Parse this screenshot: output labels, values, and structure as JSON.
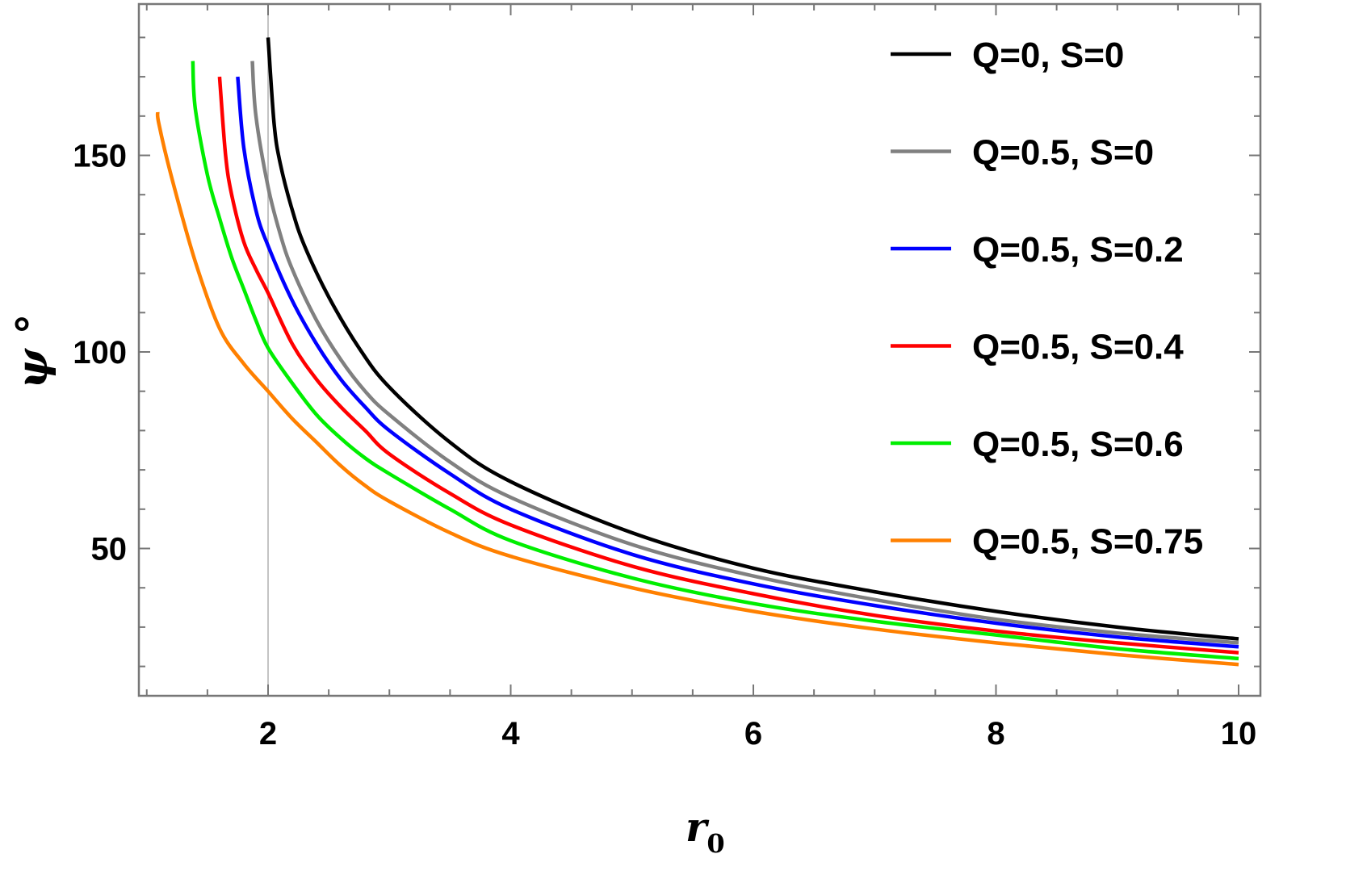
{
  "chart_data": {
    "type": "line",
    "title": "",
    "xlabel": "r",
    "xlabel_subscript": "0",
    "ylabel": "ψ °",
    "xlim": [
      0.9,
      10.2
    ],
    "ylim": [
      18,
      182
    ],
    "x_ticks": [
      2,
      4,
      6,
      8,
      10
    ],
    "x_tick_labels": [
      "2",
      "4",
      "6",
      "8",
      "10"
    ],
    "y_ticks": [
      50,
      100,
      150
    ],
    "y_tick_labels": [
      "50",
      "100",
      "150"
    ],
    "x_minor_step": 0.5,
    "y_minor_step": 10,
    "vertical_reference_line": 2,
    "grid": false,
    "legend_position": "right",
    "series": [
      {
        "name": "Q=0, S=0",
        "color": "#000000",
        "x": [
          2.0,
          2.05,
          2.1,
          2.2,
          2.3,
          2.5,
          2.75,
          3.0,
          3.5,
          4.0,
          5.0,
          6.0,
          7.0,
          8.0,
          9.0,
          10.0
        ],
        "y": [
          180,
          158,
          148,
          136,
          127,
          114,
          101,
          91,
          77,
          67,
          54,
          45,
          39,
          34,
          30,
          27
        ]
      },
      {
        "name": "Q=0.5, S=0",
        "color": "#808080",
        "x": [
          1.87,
          1.9,
          2.0,
          2.1,
          2.2,
          2.4,
          2.6,
          2.8,
          3.0,
          3.5,
          4.0,
          5.0,
          6.0,
          7.0,
          8.0,
          9.0,
          10.0
        ],
        "y": [
          174,
          160,
          142,
          130,
          121,
          108,
          98,
          90,
          84,
          72,
          63,
          51,
          43,
          37,
          32,
          28.5,
          26
        ]
      },
      {
        "name": "Q=0.5, S=0.2",
        "color": "#0000ff",
        "x": [
          1.75,
          1.8,
          1.9,
          2.0,
          2.2,
          2.4,
          2.6,
          2.8,
          3.0,
          3.5,
          4.0,
          5.0,
          6.0,
          7.0,
          8.0,
          9.0,
          10.0
        ],
        "y": [
          170,
          152,
          136,
          127,
          113,
          102,
          93,
          86,
          80,
          69,
          60,
          48.5,
          41,
          35.5,
          31,
          27.5,
          25
        ]
      },
      {
        "name": "Q=0.5, S=0.4",
        "color": "#ff0000",
        "x": [
          1.6,
          1.65,
          1.7,
          1.8,
          1.9,
          2.0,
          2.2,
          2.4,
          2.6,
          2.8,
          3.0,
          3.5,
          4.0,
          5.0,
          6.0,
          7.0,
          8.0,
          9.0,
          10.0
        ],
        "y": [
          170,
          150,
          140,
          128,
          121,
          115,
          102,
          93,
          86,
          80,
          74,
          64,
          56,
          45.5,
          38.5,
          33,
          29,
          26,
          23.5
        ]
      },
      {
        "name": "Q=0.5, S=0.6",
        "color": "#00ee00",
        "x": [
          1.38,
          1.4,
          1.5,
          1.6,
          1.7,
          1.8,
          1.9,
          2.0,
          2.2,
          2.4,
          2.6,
          2.8,
          3.0,
          3.5,
          4.0,
          5.0,
          6.0,
          7.0,
          8.0,
          9.0,
          10.0
        ],
        "y": [
          174,
          162,
          145,
          134,
          124,
          116,
          108,
          101,
          92,
          84,
          78,
          73,
          69,
          60,
          52,
          42.5,
          36,
          31.5,
          28,
          24.5,
          22
        ]
      },
      {
        "name": "Q=0.5, S=0.75",
        "color": "#ff8000",
        "x": [
          1.09,
          1.1,
          1.2,
          1.4,
          1.6,
          1.8,
          2.0,
          2.2,
          2.4,
          2.6,
          2.8,
          3.0,
          3.5,
          4.0,
          5.0,
          6.0,
          7.0,
          8.0,
          9.0,
          10.0
        ],
        "y": [
          161,
          158,
          145,
          123,
          106,
          97,
          90,
          83,
          77,
          71,
          66,
          62,
          54,
          48,
          40,
          34,
          29.5,
          26,
          23,
          20.5
        ]
      }
    ]
  }
}
